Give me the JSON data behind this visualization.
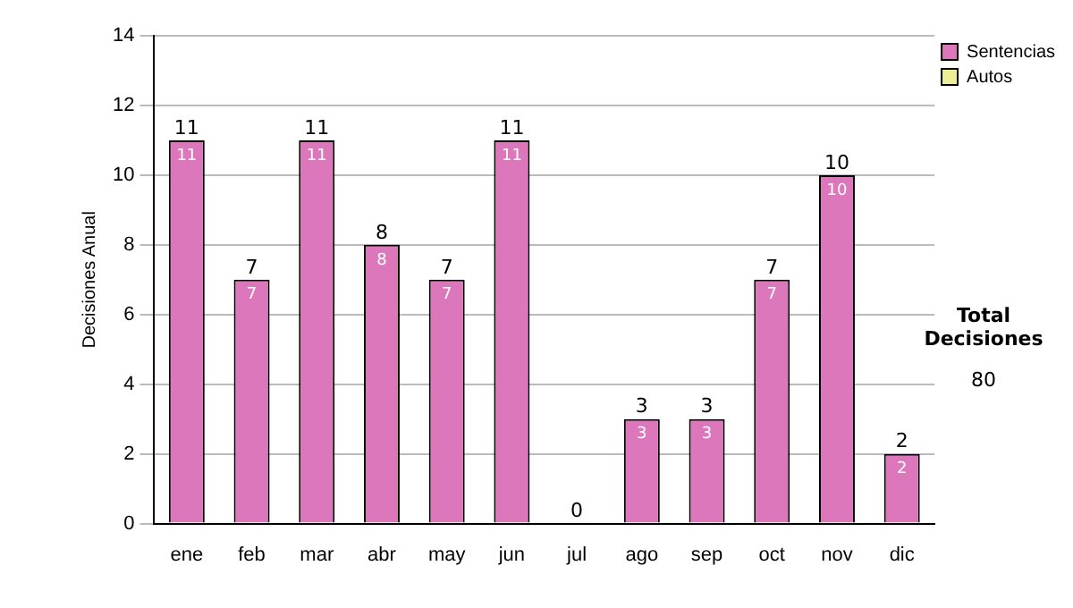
{
  "chart_data": {
    "type": "bar",
    "stacked": true,
    "ylabel": "Decisiones Anual",
    "categories": [
      "ene",
      "feb",
      "mar",
      "abr",
      "may",
      "jun",
      "jul",
      "ago",
      "sep",
      "oct",
      "nov",
      "dic"
    ],
    "series": [
      {
        "name": "Sentencias",
        "color": "#dd77bb",
        "values": [
          11,
          7,
          11,
          8,
          7,
          11,
          0,
          3,
          3,
          7,
          10,
          2
        ],
        "value_labels": [
          "11",
          "7",
          "11",
          "8",
          "7",
          "11",
          null,
          "3",
          "3",
          "7",
          "10",
          "2"
        ]
      },
      {
        "name": "Autos",
        "color": "#eeee99",
        "values": [
          0,
          0,
          0,
          0,
          0,
          0,
          0,
          0,
          0,
          0,
          0,
          0
        ]
      }
    ],
    "totals": [
      "11",
      "7",
      "11",
      "8",
      "7",
      "11",
      "0",
      "3",
      "3",
      "7",
      "10",
      "2"
    ],
    "ylim": [
      0,
      14
    ],
    "yticks": [
      0,
      2,
      4,
      6,
      8,
      10,
      12,
      14
    ],
    "grid": "y",
    "legend": "right",
    "annotations": [
      "Total Decisiones",
      "80"
    ]
  }
}
